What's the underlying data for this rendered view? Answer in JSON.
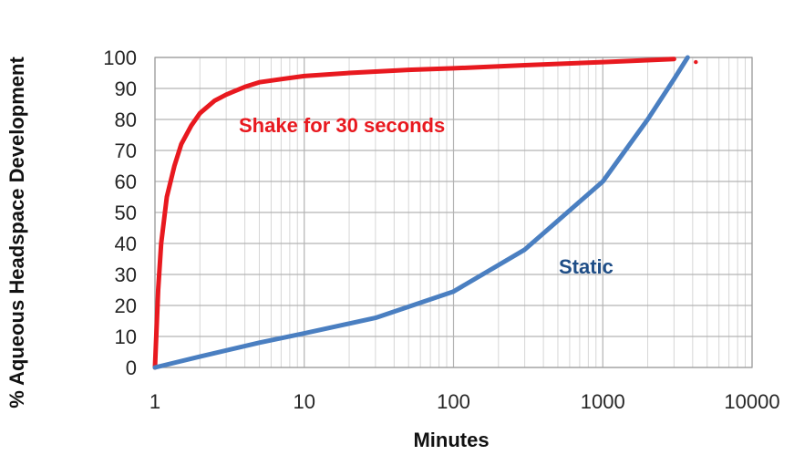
{
  "chart_data": {
    "type": "line",
    "xlabel": "Minutes",
    "ylabel": "% Aqueous Headspace Development",
    "x_scale": "log",
    "xlim": [
      1,
      10000
    ],
    "ylim": [
      0,
      100
    ],
    "grid": true,
    "x_ticks": [
      "1",
      "10",
      "100",
      "1000",
      "10000"
    ],
    "y_ticks": [
      "0",
      "10",
      "20",
      "30",
      "40",
      "50",
      "60",
      "70",
      "80",
      "90",
      "100"
    ],
    "series": [
      {
        "name": "Shake for 30 seconds",
        "color": "#e8191f",
        "x": [
          1,
          1.05,
          1.1,
          1.2,
          1.35,
          1.5,
          1.75,
          2,
          2.5,
          3,
          4,
          5,
          7,
          10,
          20,
          50,
          100,
          300,
          1000,
          3000
        ],
        "y": [
          0,
          25,
          40,
          55,
          65,
          72,
          78,
          82,
          86,
          88,
          90.5,
          92,
          93,
          94,
          95,
          96,
          96.5,
          97.5,
          98.5,
          99.5
        ]
      },
      {
        "name": "Static",
        "color": "#4a7fc1",
        "x": [
          1,
          2,
          5,
          10,
          30,
          100,
          300,
          1000,
          2000,
          3000,
          3700
        ],
        "y": [
          0,
          3.5,
          8,
          11,
          16,
          24.5,
          38,
          60,
          80,
          93,
          100
        ]
      }
    ],
    "annotations": [
      {
        "text": "Shake for 30 seconds",
        "color": "#e8191f"
      },
      {
        "text": "Static",
        "color": "#1f4e87"
      }
    ],
    "stray_points": [
      {
        "x": 4200,
        "y": 98.5,
        "color": "#e8191f"
      }
    ]
  }
}
